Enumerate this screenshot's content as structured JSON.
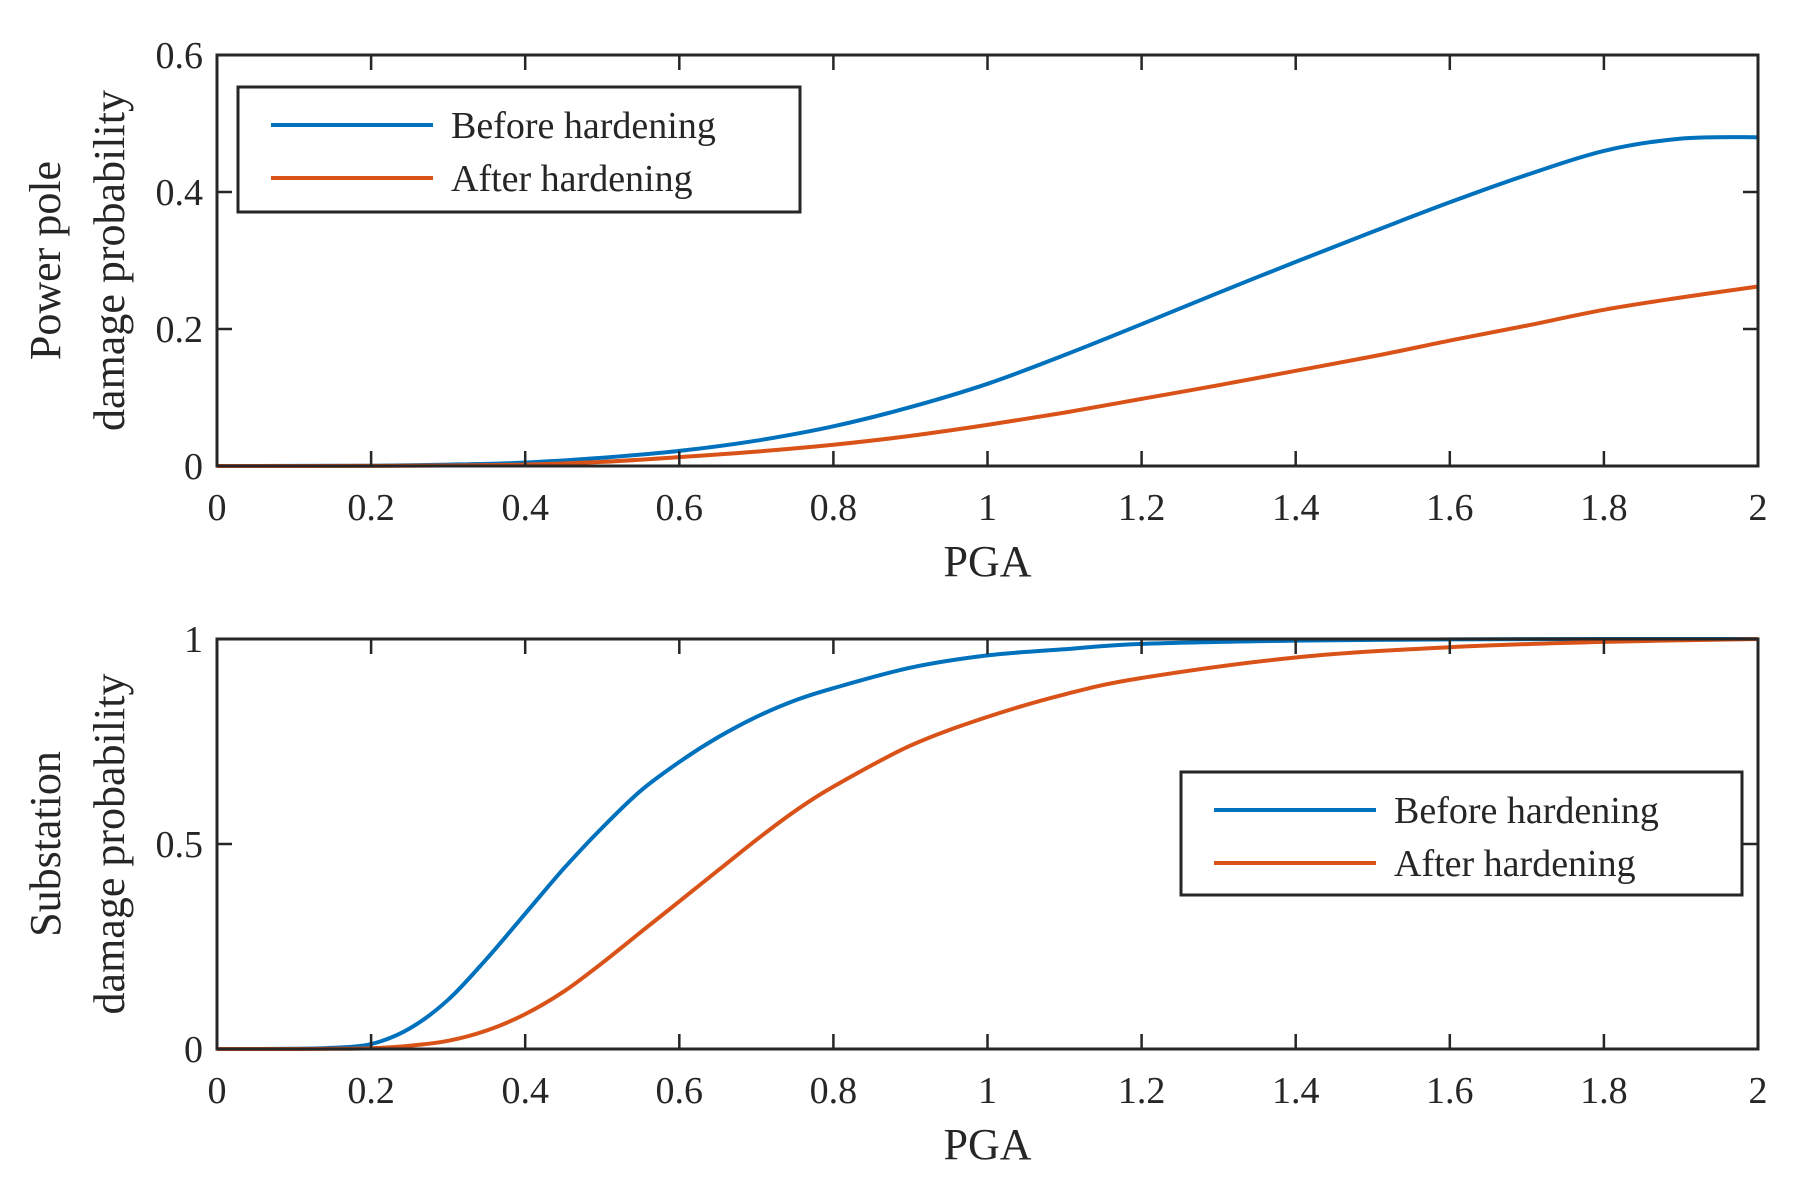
{
  "chart_data": [
    {
      "type": "line",
      "xlabel": "PGA",
      "ylabel_lines": [
        "Power pole",
        "damage probability"
      ],
      "xlim": [
        0,
        2
      ],
      "ylim": [
        0,
        0.6
      ],
      "xticks": [
        0,
        0.2,
        0.4,
        0.6,
        0.8,
        1,
        1.2,
        1.4,
        1.6,
        1.8,
        2
      ],
      "xtick_labels": [
        "0",
        "0.2",
        "0.4",
        "0.6",
        "0.8",
        "1",
        "1.2",
        "1.4",
        "1.6",
        "1.8",
        "2"
      ],
      "yticks": [
        0,
        0.2,
        0.4,
        0.6
      ],
      "ytick_labels": [
        "0",
        "0.2",
        "0.4",
        "0.6"
      ],
      "grid": false,
      "legend_position": "top-left",
      "x": [
        0,
        0.2,
        0.3,
        0.4,
        0.5,
        0.6,
        0.7,
        0.8,
        0.9,
        1.0,
        1.1,
        1.2,
        1.3,
        1.4,
        1.5,
        1.6,
        1.7,
        1.8,
        1.9,
        2.0
      ],
      "series": [
        {
          "name": "Before hardening",
          "color": "#0072BD",
          "values": [
            0,
            0.0005,
            0.002,
            0.005,
            0.012,
            0.022,
            0.037,
            0.058,
            0.086,
            0.12,
            0.162,
            0.207,
            0.253,
            0.298,
            0.342,
            0.385,
            0.425,
            0.46,
            0.478,
            0.48
          ]
        },
        {
          "name": "After hardening",
          "color": "#D95319",
          "values": [
            0,
            0.0002,
            0.0008,
            0.002,
            0.006,
            0.013,
            0.021,
            0.031,
            0.044,
            0.06,
            0.078,
            0.098,
            0.118,
            0.139,
            0.16,
            0.183,
            0.205,
            0.228,
            0.246,
            0.262
          ]
        }
      ]
    },
    {
      "type": "line",
      "xlabel": "PGA",
      "ylabel_lines": [
        "Substation",
        "damage probability"
      ],
      "xlim": [
        0,
        2
      ],
      "ylim": [
        0,
        1
      ],
      "xticks": [
        0,
        0.2,
        0.4,
        0.6,
        0.8,
        1,
        1.2,
        1.4,
        1.6,
        1.8,
        2
      ],
      "xtick_labels": [
        "0",
        "0.2",
        "0.4",
        "0.6",
        "0.8",
        "1",
        "1.2",
        "1.4",
        "1.6",
        "1.8",
        "2"
      ],
      "yticks": [
        0,
        0.5,
        1
      ],
      "ytick_labels": [
        "0",
        "0.5",
        "1"
      ],
      "grid": false,
      "legend_position": "middle-right",
      "x": [
        0,
        0.1,
        0.15,
        0.2,
        0.25,
        0.3,
        0.35,
        0.4,
        0.45,
        0.5,
        0.55,
        0.6,
        0.65,
        0.7,
        0.75,
        0.8,
        0.9,
        1.0,
        1.1,
        1.2,
        1.4,
        1.6,
        1.8,
        2.0
      ],
      "series": [
        {
          "name": "Before hardening",
          "color": "#0072BD",
          "values": [
            0,
            0.0005,
            0.003,
            0.012,
            0.05,
            0.12,
            0.22,
            0.33,
            0.44,
            0.54,
            0.63,
            0.7,
            0.76,
            0.81,
            0.85,
            0.88,
            0.93,
            0.96,
            0.975,
            0.988,
            0.996,
            0.999,
            1.0,
            1.0
          ]
        },
        {
          "name": "After hardening",
          "color": "#D95319",
          "values": [
            0,
            0,
            0.0005,
            0.002,
            0.008,
            0.02,
            0.045,
            0.085,
            0.14,
            0.21,
            0.285,
            0.36,
            0.435,
            0.51,
            0.58,
            0.64,
            0.74,
            0.81,
            0.865,
            0.905,
            0.955,
            0.98,
            0.993,
            1.0
          ]
        }
      ]
    }
  ]
}
